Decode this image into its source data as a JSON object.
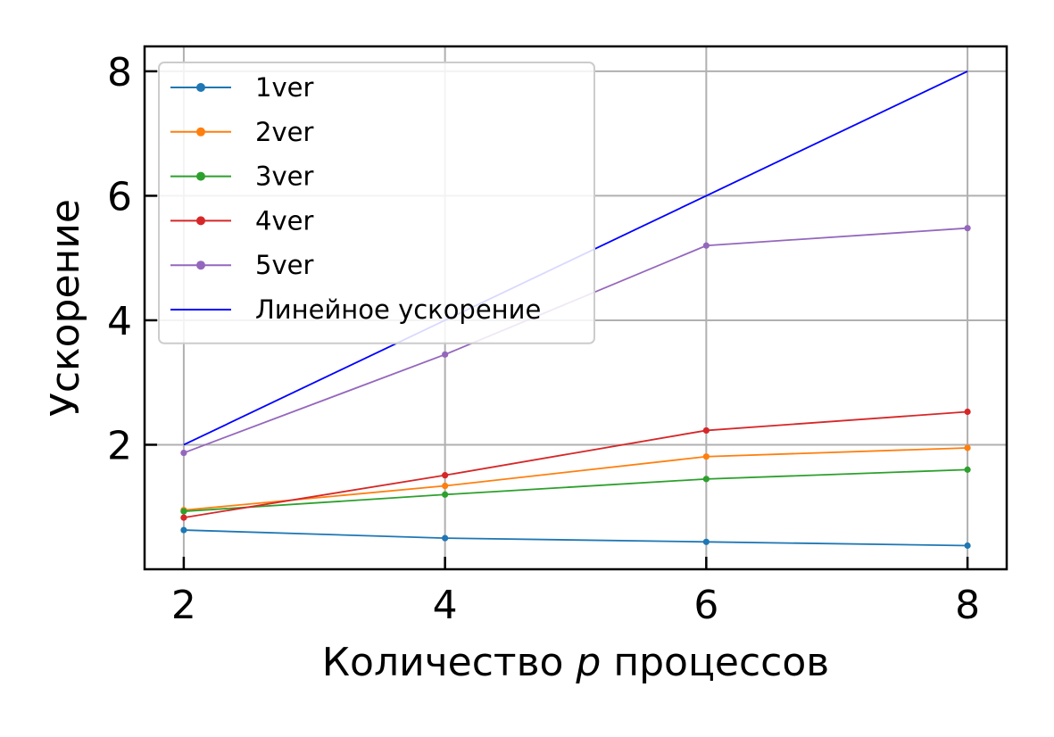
{
  "chart_data": {
    "type": "line",
    "xlabel_prefix": "Количество ",
    "xlabel_var": "p",
    "xlabel_suffix": " процессов",
    "ylabel": "Ускорение",
    "x": [
      2,
      4,
      6,
      8
    ],
    "xlim": [
      1.7,
      8.3
    ],
    "ylim": [
      0.0,
      8.4
    ],
    "xticks": [
      "2",
      "4",
      "6",
      "8"
    ],
    "yticks": [
      "2",
      "4",
      "6",
      "8"
    ],
    "grid": true,
    "legend_position": "upper-left",
    "series": [
      {
        "name": "1ver",
        "values": [
          0.63,
          0.5,
          0.44,
          0.38
        ],
        "color": "#1f77b4",
        "markers": true
      },
      {
        "name": "2ver",
        "values": [
          0.95,
          1.34,
          1.81,
          1.95
        ],
        "color": "#ff7f0e",
        "markers": true
      },
      {
        "name": "3ver",
        "values": [
          0.93,
          1.2,
          1.45,
          1.6
        ],
        "color": "#2ca02c",
        "markers": true
      },
      {
        "name": "4ver",
        "values": [
          0.83,
          1.51,
          2.23,
          2.53
        ],
        "color": "#d62728",
        "markers": true
      },
      {
        "name": "5ver",
        "values": [
          1.87,
          3.45,
          5.2,
          5.48
        ],
        "color": "#9467bd",
        "markers": true
      },
      {
        "name": "Линейное ускорение",
        "values": [
          2,
          4,
          6,
          8
        ],
        "color": "#0000ff",
        "markers": false
      }
    ]
  }
}
